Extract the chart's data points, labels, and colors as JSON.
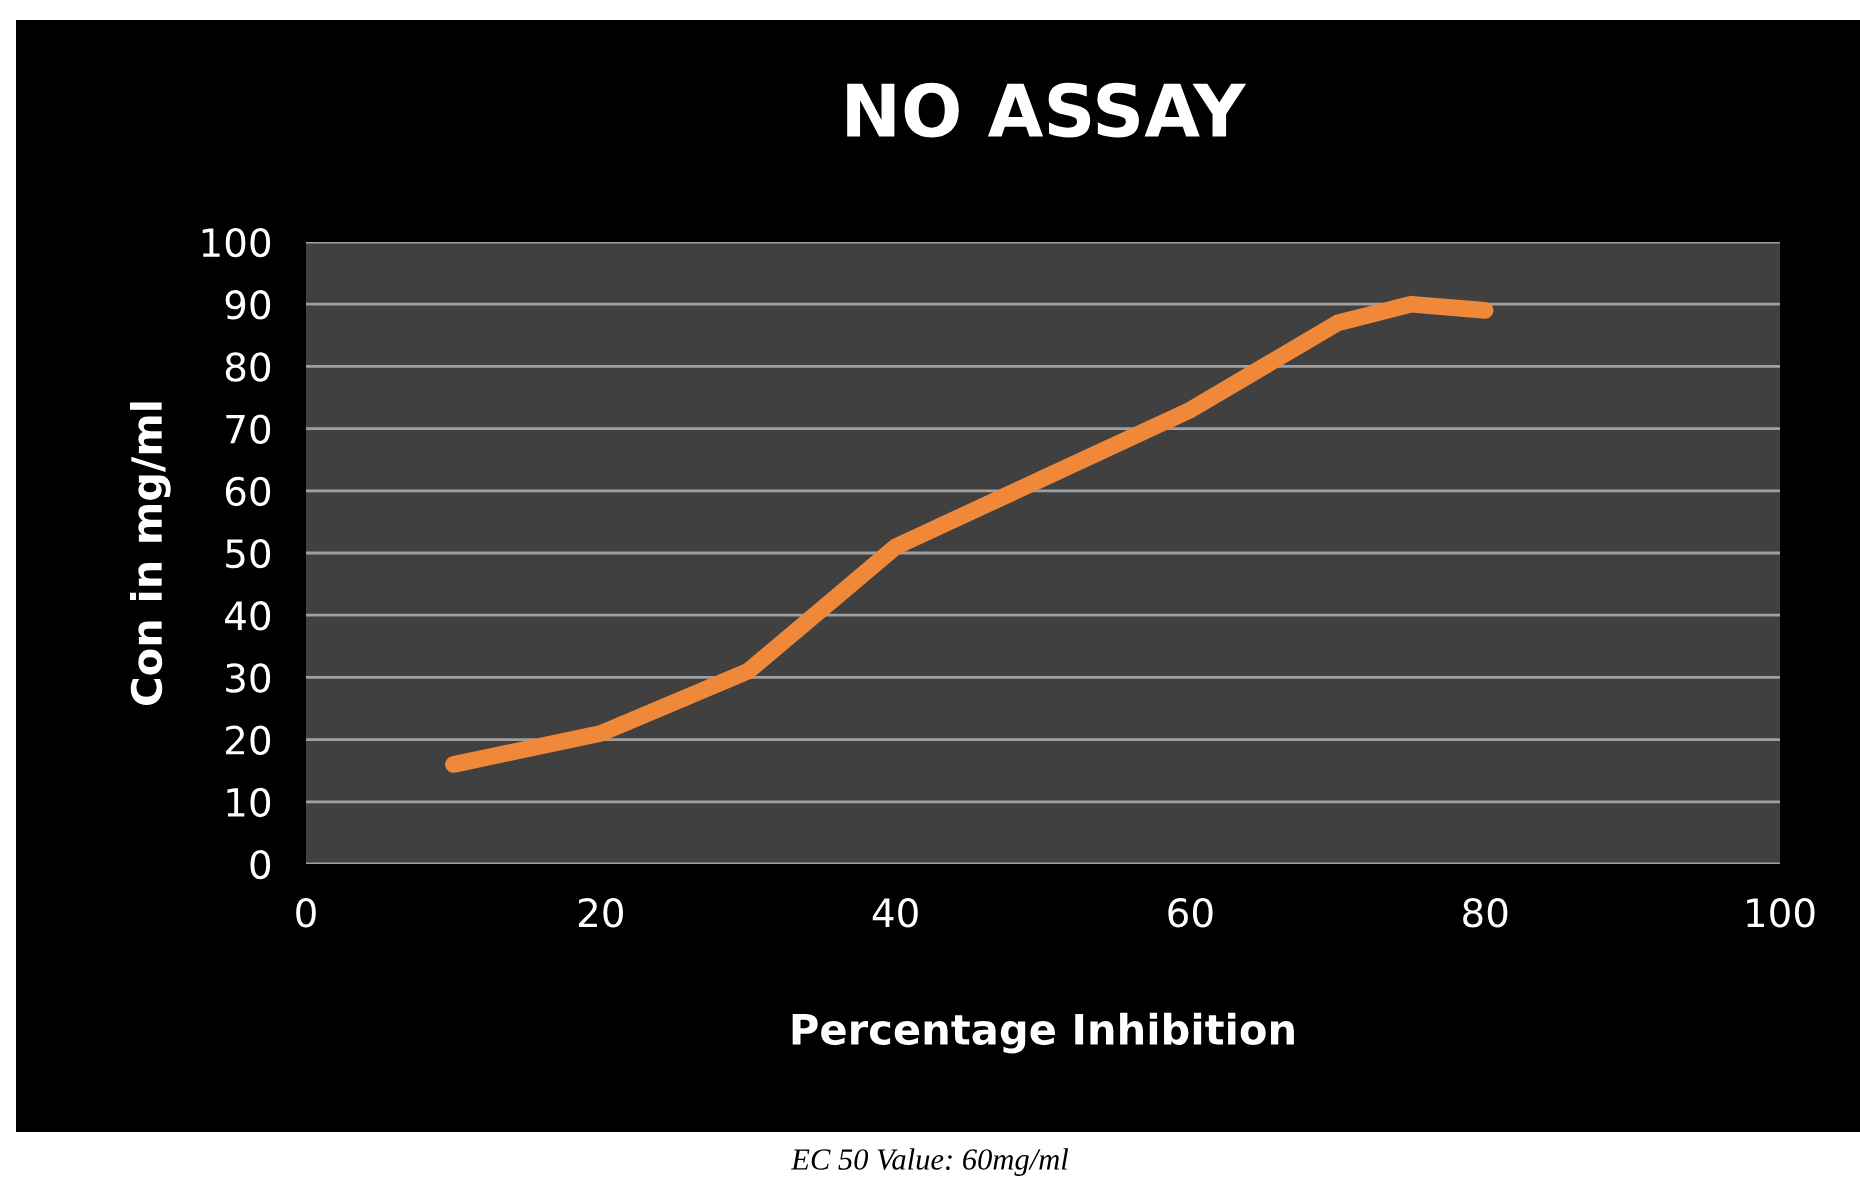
{
  "chart_data": {
    "type": "line",
    "title": "NO ASSAY",
    "xlabel": "Percentage Inhibition",
    "ylabel": "Con in mg/ml",
    "x": [
      10,
      20,
      30,
      40,
      50,
      60,
      70,
      75,
      80
    ],
    "series": [
      {
        "color": "#f0883a",
        "values": [
          16,
          21,
          31,
          51,
          62,
          73,
          87,
          90,
          89
        ]
      }
    ],
    "xlim": [
      0,
      100
    ],
    "xticks": [
      0,
      20,
      40,
      60,
      80,
      100
    ],
    "ylim": [
      0,
      100
    ],
    "yticks": [
      0,
      10,
      20,
      30,
      40,
      50,
      60,
      70,
      80,
      90,
      100
    ],
    "grid": "y",
    "marker": "none",
    "line_style": "solid",
    "legend": false,
    "annotations": [
      "EC 50 Value: 60mg/ml"
    ]
  }
}
